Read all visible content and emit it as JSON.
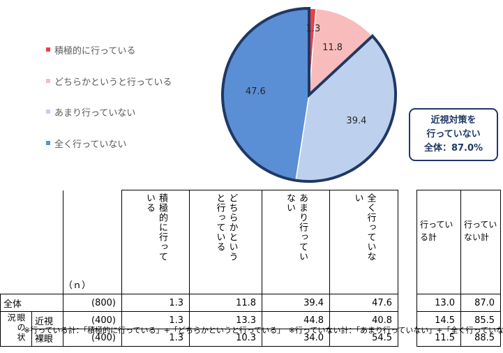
{
  "chart_data": {
    "type": "pie",
    "title": "",
    "series": [
      {
        "name": "積極的に行っている",
        "value": 1.3,
        "color": "#e8414a"
      },
      {
        "name": "どちらかというと行っている",
        "value": 11.8,
        "color": "#f9bcbc"
      },
      {
        "name": "あまり行っていない",
        "value": 39.4,
        "color": "#bdd1ee"
      },
      {
        "name": "全く行っていない",
        "value": 47.6,
        "color": "#5a8fd6"
      }
    ],
    "highlight": "あまり行っていない + 全く行っていない (outlined)",
    "legend_placement": "left"
  },
  "callout": {
    "line1": "近視対策を",
    "line2": "行っていない",
    "line3": "全体：87.0%"
  },
  "table": {
    "n_header": "（ｎ）",
    "columns": [
      "積極的に行っている",
      "どちらかというと行っている",
      "あまり行っていない",
      "全く行っていない"
    ],
    "column_lines": [
      [
        "積極的に",
        "行っている"
      ],
      [
        "どちらかと",
        "いうと行っ",
        "ている"
      ],
      [
        "あまり行っ",
        "ていない"
      ],
      [
        "全く行って",
        "いない"
      ]
    ],
    "summary_columns": [
      "行っている計",
      "行っていない計"
    ],
    "group_label": "眼の状況",
    "group_label_display": "眼の状況",
    "rows": [
      {
        "label": "全体",
        "n": "(800)",
        "values": [
          "1.3",
          "11.8",
          "39.4",
          "47.6"
        ],
        "sums": [
          "13.0",
          "87.0"
        ]
      },
      {
        "label": "近視",
        "n": "(400)",
        "values": [
          "1.3",
          "13.3",
          "44.8",
          "40.8"
        ],
        "sums": [
          "14.5",
          "85.5"
        ]
      },
      {
        "label": "裸眼",
        "n": "(400)",
        "values": [
          "1.3",
          "10.3",
          "34.0",
          "54.5"
        ],
        "sums": [
          "11.5",
          "88.5"
        ]
      }
    ]
  },
  "footnote": "※行っている計：「積極的に行っている」+「どちらかというと行っている」　※行っていない計：「あまり行っていない」+「全く行っていない」"
}
